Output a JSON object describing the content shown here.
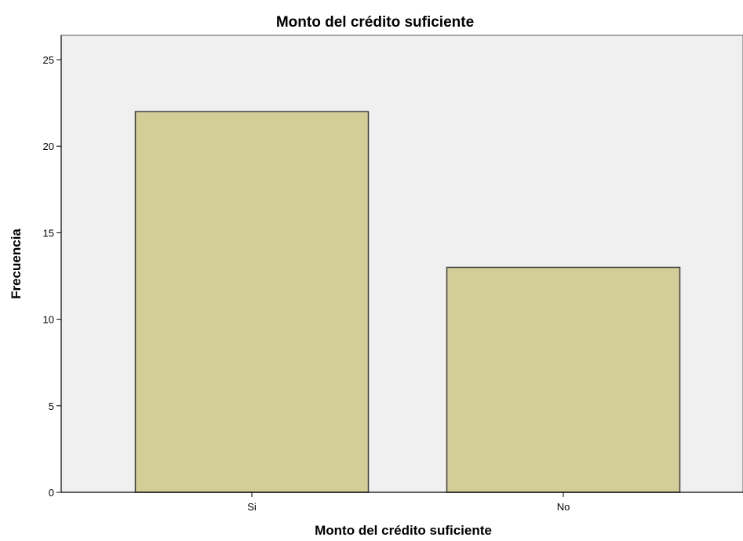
{
  "chart_data": {
    "type": "bar",
    "title": "Monto del crédito suficiente",
    "xlabel": "Monto del crédito suficiente",
    "ylabel": "Frecuencia",
    "categories": [
      "Si",
      "No"
    ],
    "values": [
      22,
      13
    ],
    "ylim": [
      0,
      25
    ],
    "yticks": [
      "0",
      "5",
      "10",
      "15",
      "20",
      "25"
    ],
    "grid": false,
    "legend": "none",
    "colors": {
      "bar_fill": "#d3cd97",
      "bar_stroke": "#3f3f3f",
      "plot_background": "#f0f0f0",
      "axis": "#000000"
    }
  }
}
